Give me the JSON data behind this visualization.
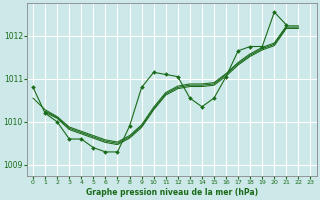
{
  "title": "Graphe pression niveau de la mer (hPa)",
  "bg_color": "#cce8e8",
  "grid_color": "#ffffff",
  "line_color": "#1a6b1a",
  "marker_color": "#1a6b1a",
  "xlim": [
    -0.5,
    23.5
  ],
  "ylim": [
    1008.75,
    1012.75
  ],
  "yticks": [
    1009,
    1010,
    1011,
    1012
  ],
  "xticks": [
    0,
    1,
    2,
    3,
    4,
    5,
    6,
    7,
    8,
    9,
    10,
    11,
    12,
    13,
    14,
    15,
    16,
    17,
    18,
    19,
    20,
    21,
    22,
    23
  ],
  "main_series": {
    "x": [
      0,
      1,
      2,
      3,
      4,
      5,
      6,
      7,
      8,
      9,
      10,
      11,
      12,
      13,
      14,
      15,
      16,
      17,
      18,
      19,
      20,
      21,
      22
    ],
    "y": [
      1010.8,
      1010.2,
      1010.0,
      1009.6,
      1009.6,
      1009.4,
      1009.3,
      1009.3,
      1009.9,
      1010.8,
      1011.15,
      1011.1,
      1011.05,
      1010.55,
      1010.35,
      1010.55,
      1011.05,
      1011.65,
      1011.75,
      1011.75,
      1012.55,
      1012.25,
      null
    ]
  },
  "smooth_lines": [
    {
      "x": [
        1,
        2,
        3,
        4,
        5,
        6,
        7,
        8,
        9,
        10,
        11,
        12,
        13,
        14,
        15,
        16,
        17,
        18,
        19,
        20,
        21,
        22
      ],
      "y": [
        1010.25,
        1010.1,
        1009.85,
        1009.75,
        1009.65,
        1009.55,
        1009.5,
        1009.65,
        1009.9,
        1010.3,
        1010.65,
        1010.8,
        1010.85,
        1010.85,
        1010.88,
        1011.1,
        1011.35,
        1011.55,
        1011.7,
        1011.8,
        1012.2,
        1012.2
      ]
    },
    {
      "x": [
        1,
        2,
        3,
        4,
        5,
        6,
        7,
        8,
        9,
        10,
        11,
        12,
        13,
        14,
        15,
        16,
        17,
        18,
        19,
        20,
        21,
        22
      ],
      "y": [
        1010.22,
        1010.08,
        1009.82,
        1009.72,
        1009.62,
        1009.52,
        1009.47,
        1009.62,
        1009.87,
        1010.28,
        1010.62,
        1010.77,
        1010.82,
        1010.82,
        1010.85,
        1011.06,
        1011.32,
        1011.52,
        1011.67,
        1011.77,
        1012.17,
        1012.17
      ]
    },
    {
      "x": [
        0,
        1,
        2,
        3,
        4,
        5,
        6,
        7,
        8,
        9,
        10,
        11,
        12,
        13,
        14,
        15,
        16,
        17,
        18,
        19,
        20,
        21,
        22
      ],
      "y": [
        1010.55,
        1010.28,
        1010.12,
        1009.88,
        1009.78,
        1009.68,
        1009.58,
        1009.53,
        1009.68,
        1009.93,
        1010.34,
        1010.68,
        1010.83,
        1010.88,
        1010.88,
        1010.91,
        1011.12,
        1011.38,
        1011.58,
        1011.73,
        1011.83,
        1012.23,
        1012.23
      ]
    }
  ]
}
